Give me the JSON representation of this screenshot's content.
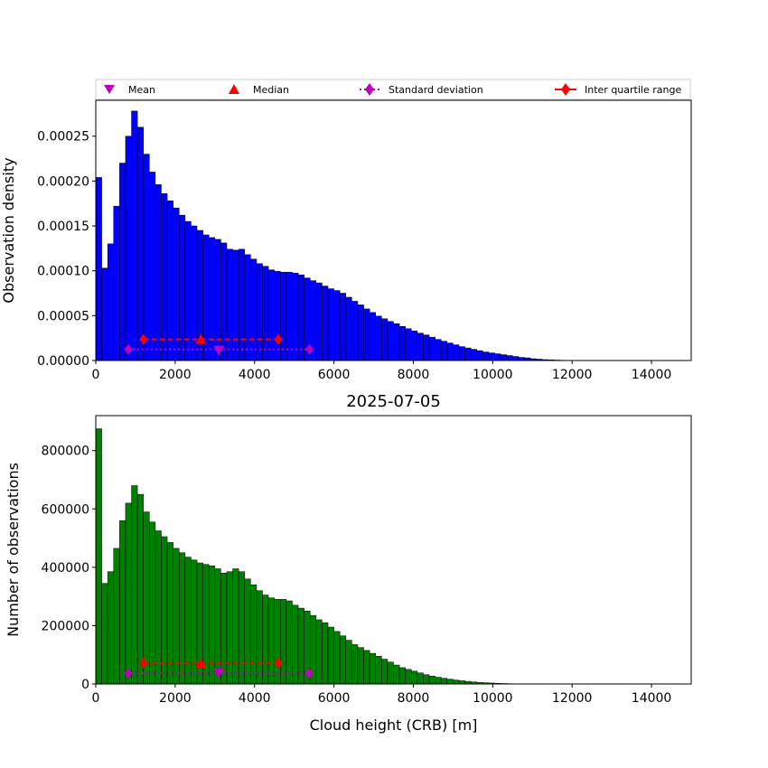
{
  "colors": {
    "top_bars": "#0000ff",
    "bottom_bars": "#008000",
    "bar_edge": "#000000",
    "mean": "#bf00bf",
    "median": "#ff0000",
    "std": "#bf00bf",
    "iqr": "#ff0000"
  },
  "legend": {
    "mean": "Mean",
    "median": "Median",
    "std": "Standard deviation",
    "iqr": "Inter quartile range",
    "placement": "top, above upper panel"
  },
  "chart_data": [
    {
      "type": "bar",
      "title": "",
      "xlabel": "",
      "ylabel": "Observation density",
      "xlim": [
        0,
        15000
      ],
      "ylim": [
        0,
        0.00029
      ],
      "bin_width": 150,
      "xticks": [
        "0",
        "2000",
        "4000",
        "6000",
        "8000",
        "10000",
        "12000",
        "14000"
      ],
      "yticks": [
        "0.00000",
        "0.00005",
        "0.00010",
        "0.00015",
        "0.00020",
        "0.00025"
      ],
      "values": [
        0.000204,
        0.000103,
        0.00013,
        0.000172,
        0.00022,
        0.00025,
        0.000278,
        0.00026,
        0.00023,
        0.00021,
        0.000196,
        0.000186,
        0.000178,
        0.00017,
        0.000162,
        0.000155,
        0.00015,
        0.000145,
        0.00014,
        0.000137,
        0.000135,
        0.000131,
        0.000124,
        0.000123,
        0.000124,
        0.000118,
        0.000113,
        0.000108,
        0.000105,
        0.000101,
        9.95e-05,
        9.85e-05,
        9.85e-05,
        9.75e-05,
        9.55e-05,
        9.2e-05,
        8.9e-05,
        8.65e-05,
        8.3e-05,
        8e-05,
        7.8e-05,
        7.5e-05,
        7.05e-05,
        6.6e-05,
        6.2e-05,
        5.75e-05,
        5.35e-05,
        4.95e-05,
        4.65e-05,
        4.35e-05,
        4.1e-05,
        3.8e-05,
        3.55e-05,
        3.3e-05,
        3.05e-05,
        2.85e-05,
        2.6e-05,
        2.35e-05,
        2.15e-05,
        1.95e-05,
        1.75e-05,
        1.55e-05,
        1.4e-05,
        1.25e-05,
        1.1e-05,
        9.5e-06,
        8.5e-06,
        7.5e-06,
        6.5e-06,
        5.5e-06,
        4.5e-06,
        3.5e-06,
        3e-06,
        2e-06,
        1.5e-06,
        1e-06,
        8e-07,
        5e-07,
        3e-07,
        2e-07,
        1e-07,
        5e-08,
        0,
        0,
        0,
        0,
        0,
        0,
        0,
        0,
        0,
        0,
        0,
        0,
        0,
        0,
        0,
        0,
        0,
        0
      ],
      "stats": {
        "mean": {
          "x": 3100,
          "y": 1.15e-05
        },
        "median": {
          "x": 2650,
          "y": 2.35e-05
        },
        "std": {
          "x": [
            820,
            5380
          ],
          "y": 1.25e-05
        },
        "iqr": {
          "x": [
            1200,
            4600
          ],
          "y": 2.35e-05
        }
      }
    },
    {
      "type": "bar",
      "title": "2025-07-05",
      "xlabel": "Cloud height (CRB) [m]",
      "ylabel": "Number of observations",
      "xlim": [
        0,
        15000
      ],
      "ylim": [
        0,
        920000
      ],
      "bin_width": 150,
      "xticks": [
        "0",
        "2000",
        "4000",
        "6000",
        "8000",
        "10000",
        "12000",
        "14000"
      ],
      "yticks": [
        "0",
        "200000",
        "400000",
        "600000",
        "800000"
      ],
      "values": [
        875000,
        345000,
        385000,
        465000,
        560000,
        620000,
        680000,
        650000,
        590000,
        555000,
        525000,
        505000,
        485000,
        465000,
        450000,
        435000,
        425000,
        415000,
        410000,
        405000,
        395000,
        380000,
        385000,
        395000,
        385000,
        360000,
        340000,
        320000,
        305000,
        295000,
        290000,
        290000,
        285000,
        270000,
        260000,
        250000,
        235000,
        220000,
        210000,
        195000,
        180000,
        165000,
        150000,
        135000,
        125000,
        115000,
        105000,
        95000,
        85000,
        75000,
        65000,
        56000,
        50000,
        44000,
        38000,
        32000,
        27000,
        23000,
        19500,
        16500,
        13500,
        11000,
        9000,
        7000,
        5500,
        4200,
        3200,
        2300,
        1600,
        1100,
        700,
        450,
        250,
        150,
        80,
        40,
        20,
        10,
        0,
        0,
        0,
        0,
        0,
        0,
        0,
        0,
        0,
        0,
        0,
        0,
        0,
        0,
        0,
        0,
        0,
        0,
        0,
        0,
        0,
        0
      ],
      "stats": {
        "mean": {
          "x": 3100,
          "y": 38000
        },
        "median": {
          "x": 2650,
          "y": 70000
        },
        "std": {
          "x": [
            820,
            5380
          ],
          "y": 36000
        },
        "iqr": {
          "x": [
            1200,
            4600
          ],
          "y": 72000
        }
      }
    }
  ]
}
